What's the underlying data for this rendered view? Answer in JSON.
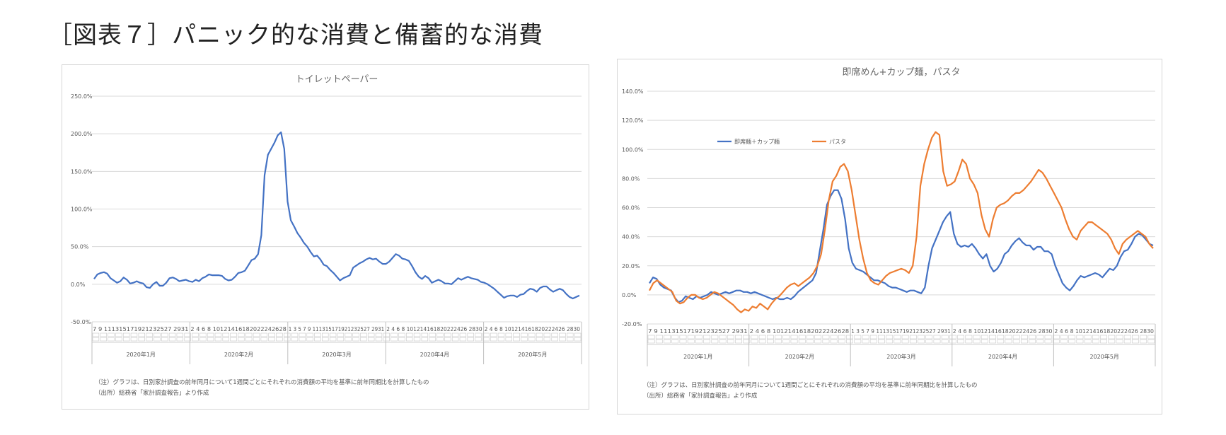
{
  "page": {
    "title": "［図表７］パニック的な消費と備蓄的な消費"
  },
  "chart_data": [
    {
      "type": "line",
      "title": "トイレットペーパー",
      "y_tick_labels": [
        "250.0%",
        "200.0%",
        "150.0%",
        "100.0%",
        "50.0%",
        "0.0%",
        "-50.0%"
      ],
      "ylim": [
        -50,
        250
      ],
      "grid": true,
      "legend": "none",
      "month_labels": [
        "2020年1月",
        "2020年2月",
        "2020年3月",
        "2020年4月",
        "2020年5月"
      ],
      "day_tick_text": [
        "7 9 111315171921232527 2931",
        "2 4 6 8 10121416182022242628",
        "1 3 5 7 9 111315171921232527 2931",
        "2 4 6 8 101214161820222426 2830",
        "2 4 6 8 101214161820222426 2830"
      ],
      "series": [
        {
          "color": "#4472C4",
          "values": [
            7,
            13,
            15,
            16,
            14,
            8,
            5,
            2,
            4,
            9,
            6,
            1,
            2,
            4,
            2,
            1,
            -4,
            -5,
            0,
            3,
            -2,
            -2,
            2,
            8,
            9,
            7,
            4,
            5,
            6,
            4,
            3,
            6,
            4,
            8,
            10,
            13,
            12,
            12,
            12,
            11,
            7,
            5,
            6,
            10,
            15,
            16,
            18,
            25,
            32,
            34,
            40,
            65,
            145,
            172,
            180,
            188,
            198,
            202,
            180,
            110,
            85,
            77,
            68,
            62,
            55,
            50,
            43,
            37,
            38,
            33,
            26,
            24,
            19,
            15,
            10,
            5,
            8,
            10,
            12,
            22,
            25,
            28,
            30,
            33,
            35,
            33,
            34,
            30,
            27,
            27,
            30,
            35,
            40,
            38,
            34,
            33,
            31,
            24,
            16,
            10,
            7,
            11,
            8,
            2,
            4,
            6,
            4,
            1,
            1,
            0,
            4,
            8,
            6,
            8,
            10,
            8,
            7,
            6,
            3,
            2,
            0,
            -3,
            -6,
            -10,
            -14,
            -18,
            -16,
            -15,
            -15,
            -17,
            -14,
            -13,
            -9,
            -6,
            -7,
            -10,
            -5,
            -3,
            -3,
            -7,
            -10,
            -8,
            -6,
            -8,
            -13,
            -17,
            -19,
            -17,
            -15
          ]
        }
      ],
      "notes": [
        "（注）グラフは、日別家計調査の前年同月について1週間ごとにそれぞれの消費額の平均を基準に前年同期比を計算したもの",
        "（出所）総務省「家計調査報告」より作成"
      ]
    },
    {
      "type": "line",
      "title": "即席めん+カップ麺，パスタ",
      "y_tick_labels": [
        "140.0%",
        "120.0%",
        "100.0%",
        "80.0%",
        "60.0%",
        "40.0%",
        "20.0%",
        "0.0%",
        "-20.0%"
      ],
      "ylim": [
        -20,
        140
      ],
      "grid": true,
      "legend": "upper-left",
      "month_labels": [
        "2020年1月",
        "2020年2月",
        "2020年3月",
        "2020年4月",
        "2020年5月"
      ],
      "day_tick_text": [
        "7 9 111315171921232527 2931",
        "2 4 6 8 10121416182022242628",
        "1 3 5 7 9 111315171921232527 2931",
        "2 4 6 8 101214161820222426 2830",
        "2 4 6 8 101214161820222426 2830"
      ],
      "series": [
        {
          "name": "即席麺＋カップ麺",
          "color": "#4472C4",
          "values": [
            8,
            12,
            11,
            7,
            5,
            4,
            3,
            -2,
            -5,
            -4,
            -1,
            -2,
            -3,
            -1,
            -2,
            -1,
            0,
            2,
            1,
            0,
            1,
            2,
            1,
            2,
            3,
            3,
            2,
            2,
            1,
            2,
            1,
            0,
            -1,
            -2,
            -3,
            -2,
            -3,
            -3,
            -2,
            -3,
            -1,
            2,
            4,
            6,
            8,
            10,
            15,
            30,
            45,
            62,
            68,
            72,
            72,
            66,
            52,
            32,
            22,
            18,
            17,
            16,
            14,
            12,
            10,
            10,
            9,
            8,
            6,
            5,
            5,
            4,
            3,
            2,
            3,
            3,
            2,
            1,
            5,
            20,
            32,
            38,
            44,
            50,
            54,
            57,
            42,
            35,
            33,
            34,
            33,
            35,
            32,
            28,
            25,
            28,
            20,
            16,
            18,
            22,
            28,
            30,
            34,
            37,
            39,
            36,
            34,
            34,
            31,
            33,
            33,
            30,
            30,
            28,
            20,
            14,
            8,
            5,
            3,
            6,
            10,
            13,
            12,
            13,
            14,
            15,
            14,
            12,
            15,
            18,
            17,
            20,
            26,
            30,
            31,
            35,
            40,
            42,
            41,
            38,
            35,
            34
          ]
        },
        {
          "name": "パスタ",
          "color": "#ED7D31",
          "values": [
            3,
            8,
            10,
            8,
            6,
            4,
            2,
            -4,
            -6,
            -5,
            -2,
            0,
            0,
            -2,
            -3,
            -2,
            0,
            2,
            1,
            -1,
            -3,
            -5,
            -7,
            -10,
            -12,
            -10,
            -11,
            -8,
            -9,
            -6,
            -8,
            -10,
            -6,
            -3,
            -1,
            2,
            5,
            7,
            8,
            6,
            8,
            10,
            12,
            15,
            20,
            28,
            45,
            65,
            78,
            82,
            88,
            90,
            85,
            72,
            55,
            38,
            25,
            15,
            10,
            8,
            7,
            10,
            13,
            15,
            16,
            17,
            18,
            17,
            15,
            20,
            40,
            75,
            90,
            100,
            108,
            112,
            110,
            85,
            75,
            76,
            78,
            85,
            93,
            90,
            80,
            76,
            70,
            55,
            45,
            40,
            52,
            60,
            62,
            63,
            65,
            68,
            70,
            70,
            72,
            75,
            78,
            82,
            86,
            84,
            80,
            75,
            70,
            65,
            60,
            52,
            45,
            40,
            38,
            44,
            47,
            50,
            50,
            48,
            46,
            44,
            42,
            38,
            32,
            28,
            35,
            38,
            40,
            42,
            44,
            42,
            40,
            35,
            32
          ]
        }
      ],
      "notes": [
        "（注）グラフは、日別家計調査の前年同月について1週間ごとにそれぞれの消費額の平均を基準に前年同期比を計算したもの",
        "（出所）総務省「家計調査報告」より作成"
      ]
    }
  ]
}
